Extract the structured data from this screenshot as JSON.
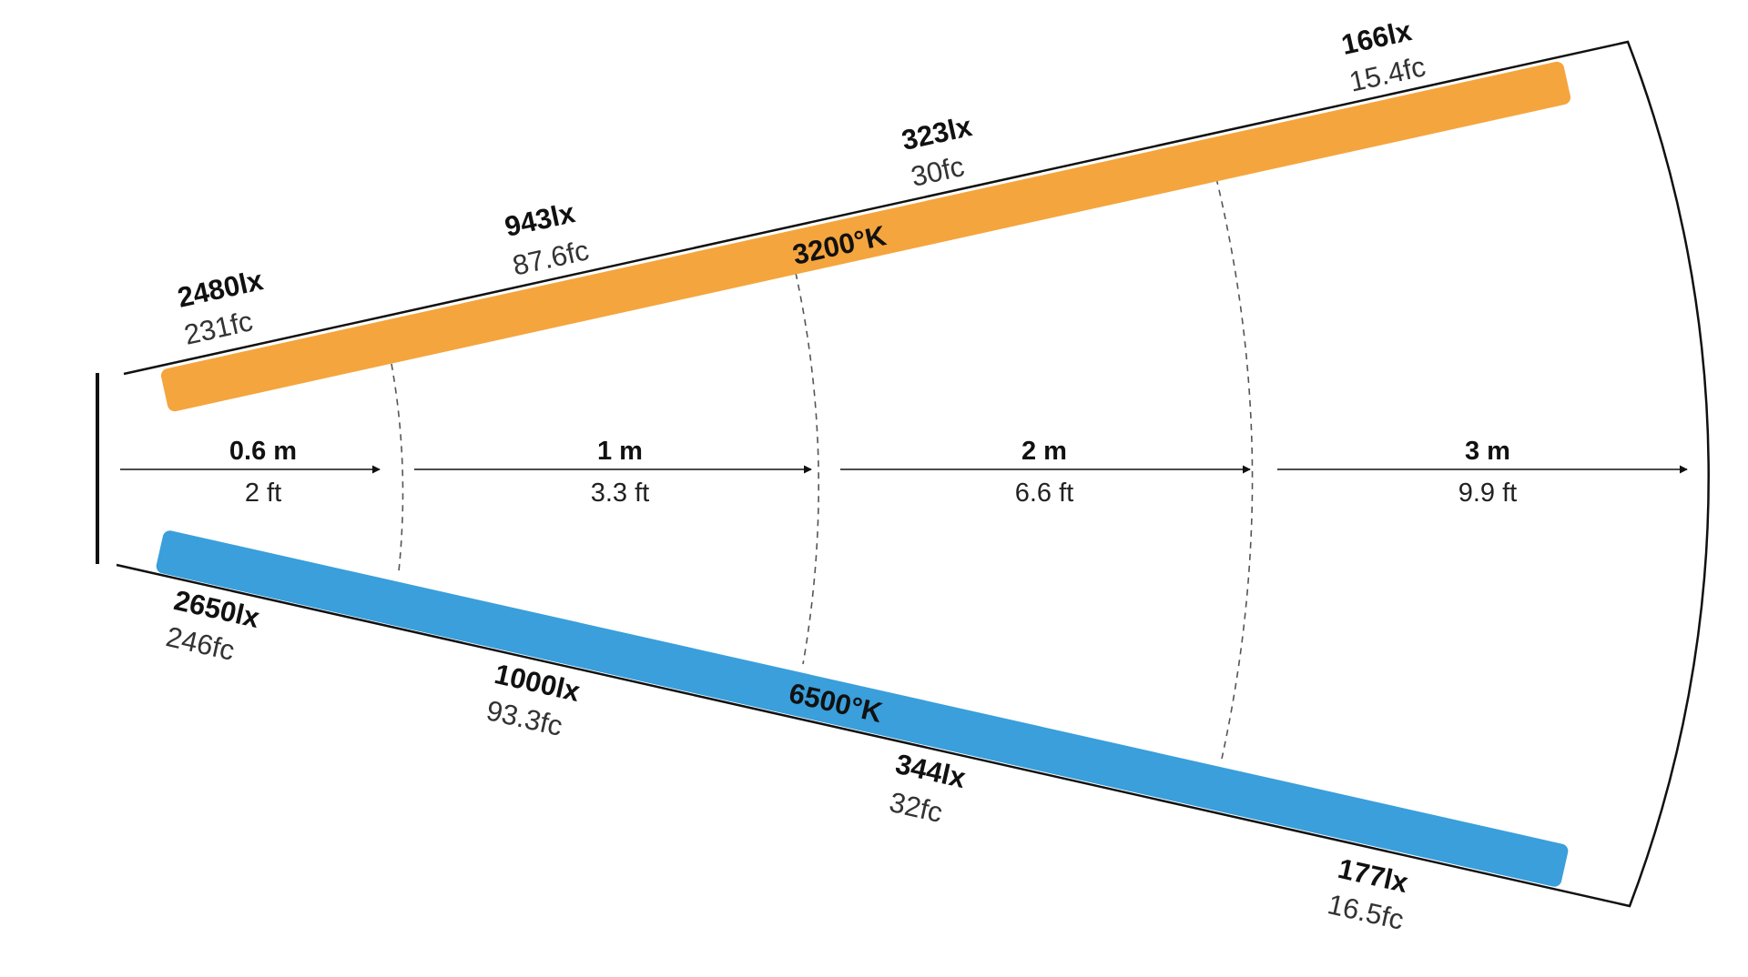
{
  "warm_beam": {
    "temperature": "3200°K",
    "color": "#F5A53D",
    "readings": [
      {
        "lux": "2480lx",
        "fc": "231fc"
      },
      {
        "lux": "943lx",
        "fc": "87.6fc"
      },
      {
        "lux": "323lx",
        "fc": "30fc"
      },
      {
        "lux": "166lx",
        "fc": "15.4fc"
      }
    ]
  },
  "cool_beam": {
    "temperature": "6500°K",
    "color": "#3A9FDB",
    "readings": [
      {
        "lux": "2650lx",
        "fc": "246fc"
      },
      {
        "lux": "1000lx",
        "fc": "93.3fc"
      },
      {
        "lux": "344lx",
        "fc": "32fc"
      },
      {
        "lux": "177lx",
        "fc": "16.5fc"
      }
    ]
  },
  "distances": [
    {
      "m": "0.6 m",
      "ft": "2 ft"
    },
    {
      "m": "1 m",
      "ft": "3.3 ft"
    },
    {
      "m": "2 m",
      "ft": "6.6 ft"
    },
    {
      "m": "3 m",
      "ft": "9.9 ft"
    }
  ]
}
